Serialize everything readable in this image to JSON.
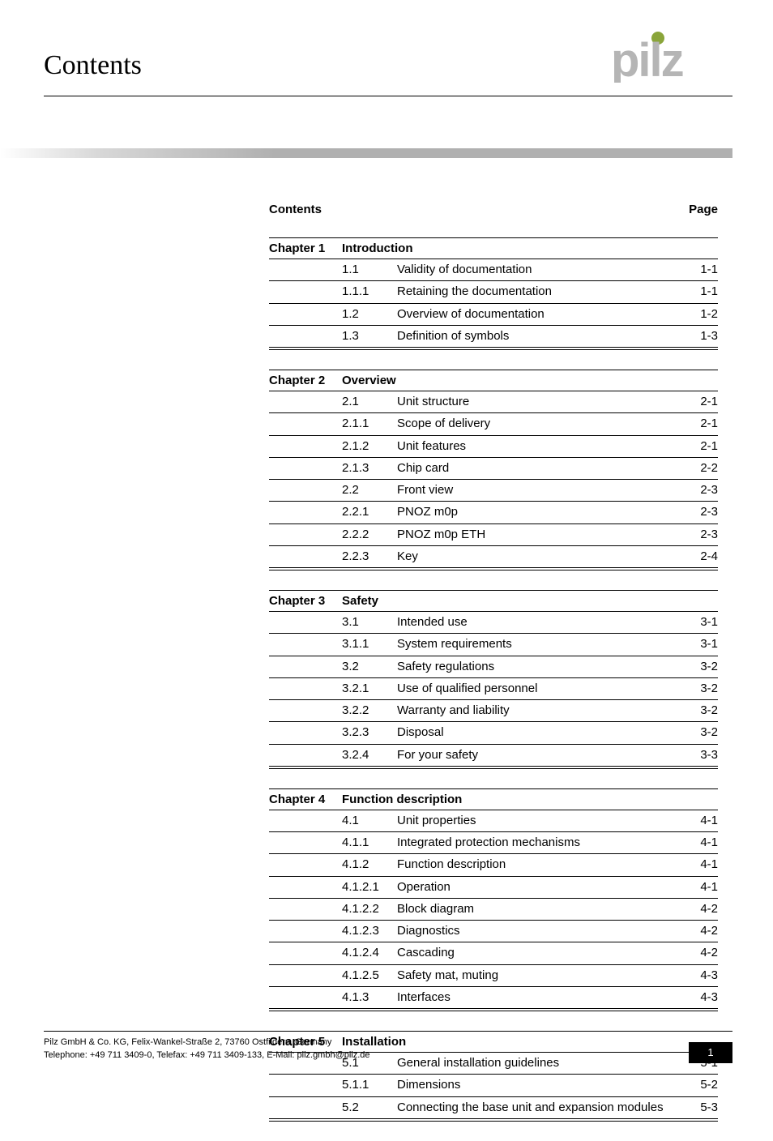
{
  "page_title": "Contents",
  "logo": {
    "text": "pilz",
    "dot_color": "#8aa53a",
    "letter_color": "#b5b5b5"
  },
  "toc_header": {
    "left": "Contents",
    "right": "Page"
  },
  "chapters": [
    {
      "label": "Chapter 1",
      "title": "Introduction",
      "rows": [
        {
          "num": "1.1",
          "title": "Validity of documentation",
          "page": "1-1"
        },
        {
          "num": "1.1.1",
          "title": "Retaining the documentation",
          "page": "1-1"
        },
        {
          "num": "1.2",
          "title": "Overview of documentation",
          "page": "1-2"
        },
        {
          "num": "1.3",
          "title": "Definition of symbols",
          "page": "1-3"
        }
      ]
    },
    {
      "label": "Chapter 2",
      "title": "Overview",
      "rows": [
        {
          "num": "2.1",
          "title": "Unit structure",
          "page": "2-1"
        },
        {
          "num": "2.1.1",
          "title": "Scope of delivery",
          "page": "2-1"
        },
        {
          "num": "2.1.2",
          "title": "Unit features",
          "page": "2-1"
        },
        {
          "num": "2.1.3",
          "title": "Chip card",
          "page": "2-2"
        },
        {
          "num": "2.2",
          "title": "Front view",
          "page": "2-3"
        },
        {
          "num": "2.2.1",
          "title": "PNOZ m0p",
          "page": "2-3"
        },
        {
          "num": "2.2.2",
          "title": "PNOZ m0p ETH",
          "page": "2-3"
        },
        {
          "num": "2.2.3",
          "title": "Key",
          "page": "2-4"
        }
      ]
    },
    {
      "label": "Chapter 3",
      "title": "Safety",
      "rows": [
        {
          "num": "3.1",
          "title": "Intended use",
          "page": "3-1"
        },
        {
          "num": "3.1.1",
          "title": "System requirements",
          "page": "3-1"
        },
        {
          "num": "3.2",
          "title": "Safety regulations",
          "page": "3-2"
        },
        {
          "num": "3.2.1",
          "title": "Use of qualified personnel",
          "page": "3-2"
        },
        {
          "num": "3.2.2",
          "title": "Warranty and liability",
          "page": "3-2"
        },
        {
          "num": "3.2.3",
          "title": "Disposal",
          "page": "3-2"
        },
        {
          "num": "3.2.4",
          "title": "For your safety",
          "page": "3-3"
        }
      ]
    },
    {
      "label": "Chapter 4",
      "title": "Function description",
      "rows": [
        {
          "num": "4.1",
          "title": "Unit properties",
          "page": "4-1"
        },
        {
          "num": "4.1.1",
          "title": "Integrated protection mechanisms",
          "page": "4-1"
        },
        {
          "num": "4.1.2",
          "title": "Function description",
          "page": "4-1"
        },
        {
          "num": "4.1.2.1",
          "title": "Operation",
          "page": "4-1"
        },
        {
          "num": "4.1.2.2",
          "title": "Block diagram",
          "page": "4-2"
        },
        {
          "num": "4.1.2.3",
          "title": "Diagnostics",
          "page": "4-2"
        },
        {
          "num": "4.1.2.4",
          "title": "Cascading",
          "page": "4-2"
        },
        {
          "num": "4.1.2.5",
          "title": "Safety mat, muting",
          "page": "4-3"
        },
        {
          "num": "4.1.3",
          "title": "Interfaces",
          "page": "4-3"
        }
      ]
    },
    {
      "label": "Chapter 5",
      "title": "Installation",
      "rows": [
        {
          "num": "5.1",
          "title": "General installation guidelines",
          "page": "5-1"
        },
        {
          "num": "5.1.1",
          "title": "Dimensions",
          "page": "5-2"
        },
        {
          "num": "5.2",
          "title": "Connecting the base unit and expansion modules",
          "page": "5-3"
        }
      ]
    }
  ],
  "footer": {
    "line1": "Pilz GmbH & Co. KG, Felix-Wankel-Straße 2, 73760 Ostfildern, Germany",
    "line2": "Telephone: +49 711 3409-0, Telefax: +49 711 3409-133, E-Mail: pilz.gmbh@pilz.de",
    "page_number": "1"
  }
}
